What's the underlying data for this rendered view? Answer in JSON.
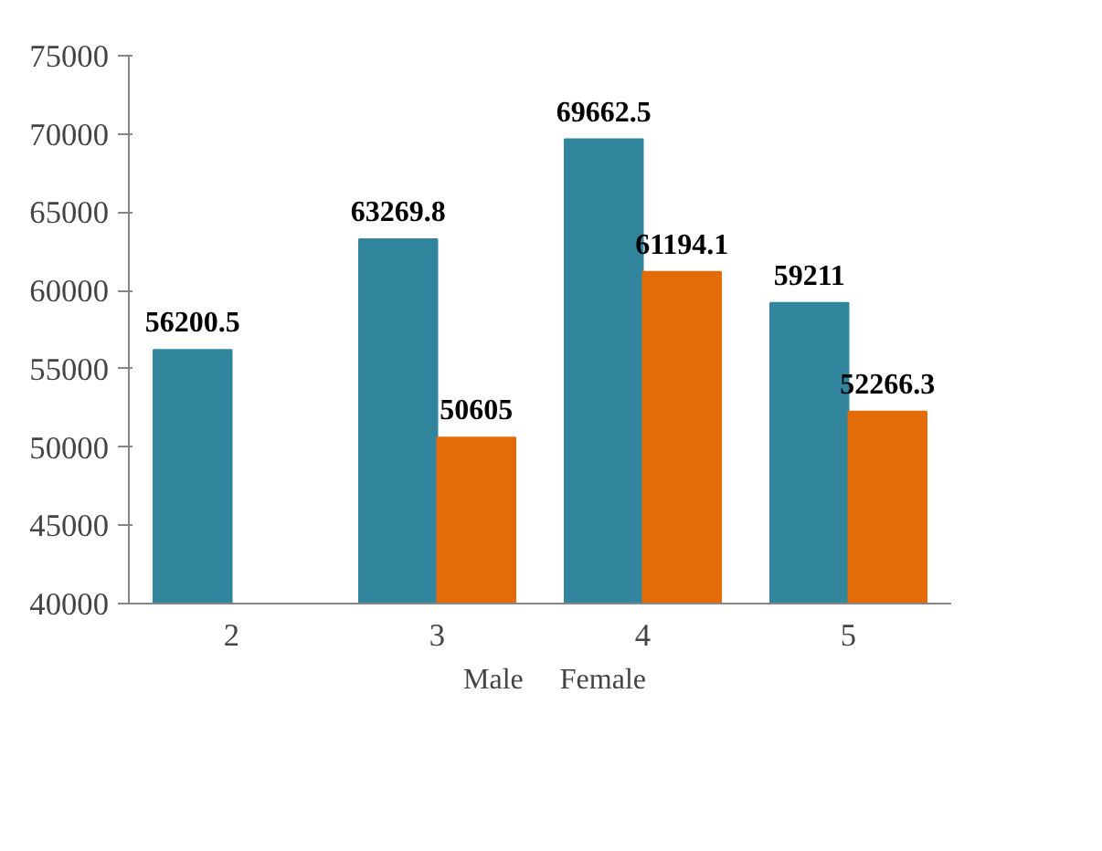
{
  "chart_data": {
    "type": "bar",
    "categories": [
      "2",
      "3",
      "4",
      "5"
    ],
    "series": [
      {
        "name": "Male",
        "color": "#31859c",
        "values": [
          56200.5,
          63269.8,
          69662.5,
          59211
        ]
      },
      {
        "name": "Female",
        "color": "#e36c09",
        "values": [
          null,
          50605,
          61194.1,
          52266.3
        ]
      }
    ],
    "ylim": [
      40000,
      75000
    ],
    "yticks": [
      40000,
      45000,
      50000,
      55000,
      60000,
      65000,
      70000,
      75000
    ],
    "grid": false,
    "legend": "bottom",
    "data_labels": true
  }
}
